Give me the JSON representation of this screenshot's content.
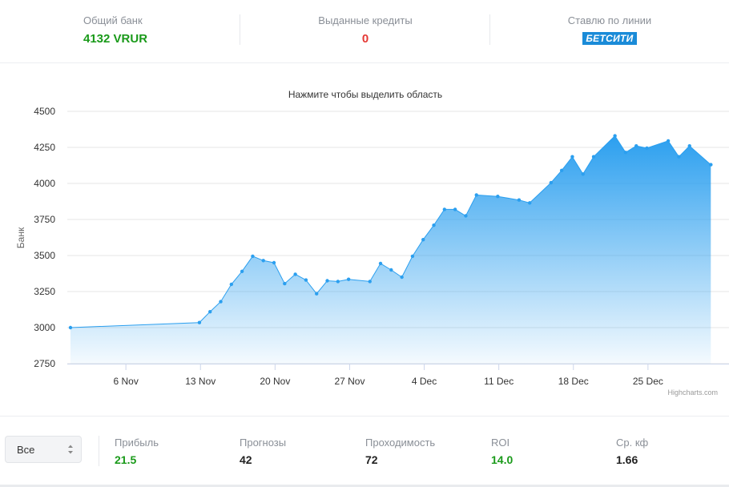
{
  "header": {
    "total_bank_label": "Общий банк",
    "total_bank_value": "4132 VRUR",
    "loans_label": "Выданные кредиты",
    "loans_value": "0",
    "bookmaker_label": "Ставлю по линии",
    "bookmaker_logo": "БЕТСИТИ"
  },
  "chart_data": {
    "type": "area",
    "title": "Нажмите чтобы выделить область",
    "ylabel": "Банк",
    "xlabel": "",
    "ylim": [
      2750,
      4500
    ],
    "yticks": [
      2750,
      3000,
      3250,
      3500,
      3750,
      4000,
      4250,
      4500
    ],
    "xticks": [
      {
        "label": "6 Nov",
        "day": 6
      },
      {
        "label": "13 Nov",
        "day": 13
      },
      {
        "label": "20 Nov",
        "day": 20
      },
      {
        "label": "27 Nov",
        "day": 27
      },
      {
        "label": "4 Dec",
        "day": 34
      },
      {
        "label": "11 Dec",
        "day": 41
      },
      {
        "label": "18 Dec",
        "day": 48
      },
      {
        "label": "25 Dec",
        "day": 55
      }
    ],
    "grid": true,
    "legend": "none",
    "color": "#2b9fef",
    "series": [
      {
        "points": [
          [
            0.8,
            3000
          ],
          [
            12.9,
            3035
          ],
          [
            13.9,
            3110
          ],
          [
            14.9,
            3180
          ],
          [
            15.9,
            3300
          ],
          [
            16.9,
            3390
          ],
          [
            17.9,
            3495
          ],
          [
            18.9,
            3465
          ],
          [
            19.9,
            3450
          ],
          [
            20.9,
            3305
          ],
          [
            21.9,
            3370
          ],
          [
            22.9,
            3330
          ],
          [
            23.9,
            3235
          ],
          [
            24.9,
            3325
          ],
          [
            25.9,
            3320
          ],
          [
            26.9,
            3335
          ],
          [
            28.9,
            3320
          ],
          [
            29.9,
            3445
          ],
          [
            30.9,
            3400
          ],
          [
            31.9,
            3350
          ],
          [
            32.9,
            3495
          ],
          [
            33.9,
            3610
          ],
          [
            34.9,
            3710
          ],
          [
            35.9,
            3820
          ],
          [
            36.9,
            3820
          ],
          [
            37.9,
            3775
          ],
          [
            38.9,
            3920
          ],
          [
            40.9,
            3910
          ],
          [
            42.9,
            3885
          ],
          [
            43.9,
            3865
          ],
          [
            45.9,
            4005
          ],
          [
            46.9,
            4090
          ],
          [
            47.9,
            4185
          ],
          [
            48.9,
            4065
          ],
          [
            49.9,
            4185
          ],
          [
            51.9,
            4330
          ],
          [
            52.9,
            4215
          ],
          [
            53.9,
            4260
          ],
          [
            54.9,
            4245
          ],
          [
            56.9,
            4295
          ],
          [
            57.9,
            4185
          ],
          [
            58.9,
            4260
          ],
          [
            60.9,
            4130
          ]
        ]
      }
    ],
    "credits": "Highcharts.com"
  },
  "footer": {
    "select_value": "Все",
    "profit_label": "Прибыль",
    "profit_value": "21.5",
    "forecasts_label": "Прогнозы",
    "forecasts_value": "42",
    "passability_label": "Проходимость",
    "passability_value": "72",
    "roi_label": "ROI",
    "roi_value": "14.0",
    "avg_coef_label": "Ср. кф",
    "avg_coef_value": "1.66"
  }
}
